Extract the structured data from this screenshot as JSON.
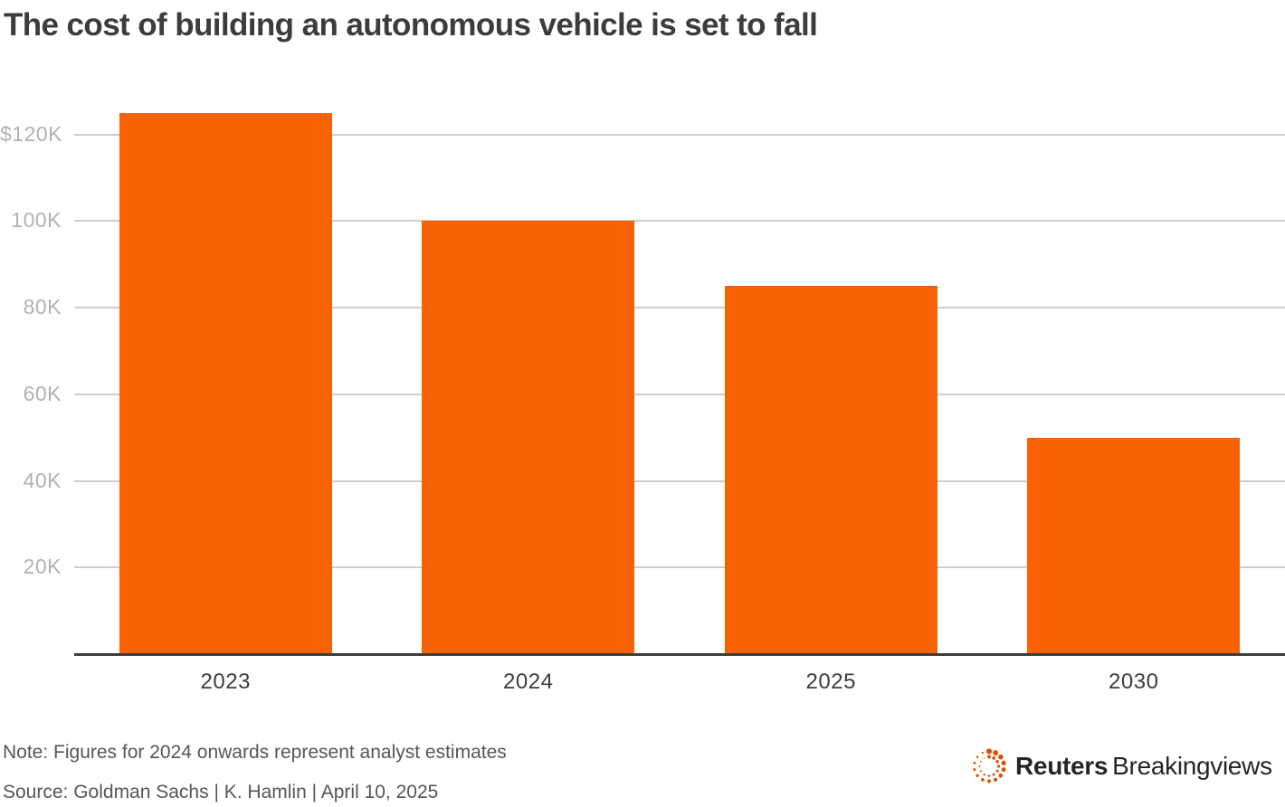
{
  "title": "The cost of building an autonomous vehicle is set to fall",
  "note": "Note: Figures for 2024 onwards represent analyst estimates",
  "source": "Source: Goldman Sachs | K. Hamlin | April 10, 2025",
  "branding": {
    "logo_icon": "reuters-dotted-circle-icon",
    "brand_bold": "Reuters",
    "brand_regular": "Breakingviews",
    "logo_color": "#d9530b"
  },
  "colors": {
    "bar": "#f76302",
    "gridline": "#cdcdcd",
    "axis_line": "#3d3d3d",
    "ytick_label": "#b2b2b2",
    "xtick_label": "#3d3d3d",
    "title_text": "#3c3c3c",
    "note_text": "#565656"
  },
  "chart_data": {
    "type": "bar",
    "categories": [
      "2023",
      "2024",
      "2025",
      "2030"
    ],
    "values": [
      125000,
      100000,
      85000,
      50000
    ],
    "title": "The cost of building an autonomous vehicle is set to fall",
    "xlabel": "",
    "ylabel": "",
    "ylim": [
      0,
      125000
    ],
    "yticks": [
      {
        "value": 20000,
        "label": "20K"
      },
      {
        "value": 40000,
        "label": "40K"
      },
      {
        "value": 60000,
        "label": "60K"
      },
      {
        "value": 80000,
        "label": "80K"
      },
      {
        "value": 100000,
        "label": "100K"
      },
      {
        "value": 120000,
        "label": "$120K"
      }
    ],
    "grid": true,
    "legend": false,
    "note": "Note: Figures for 2024 onwards represent analyst estimates",
    "source": "Source: Goldman Sachs | K. Hamlin | April 10, 2025"
  }
}
